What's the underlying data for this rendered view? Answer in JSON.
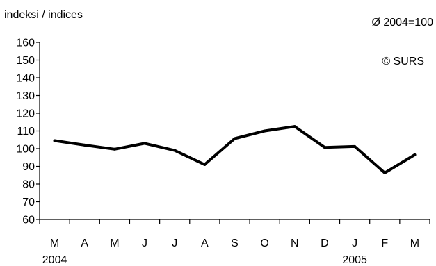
{
  "chart_data": {
    "type": "line",
    "ylabel": "indeksi / indices",
    "base_note": "Ø 2004=100",
    "copyright": "© SURS",
    "categories": [
      "M",
      "A",
      "M",
      "J",
      "J",
      "A",
      "S",
      "O",
      "N",
      "D",
      "J",
      "F",
      "M"
    ],
    "year_labels": [
      {
        "index": 0,
        "label": "2004"
      },
      {
        "index": 10,
        "label": "2005"
      }
    ],
    "series": [
      {
        "values": [
          104.5,
          102,
          99.7,
          103,
          99,
          91,
          105.7,
          110,
          112.5,
          100.7,
          101.2,
          86.3,
          96.5
        ],
        "color": "#000000"
      }
    ],
    "ylim": [
      60,
      160
    ],
    "yticks": [
      60,
      70,
      80,
      90,
      100,
      110,
      120,
      130,
      140,
      150,
      160
    ],
    "grid": false,
    "legend": "none"
  }
}
